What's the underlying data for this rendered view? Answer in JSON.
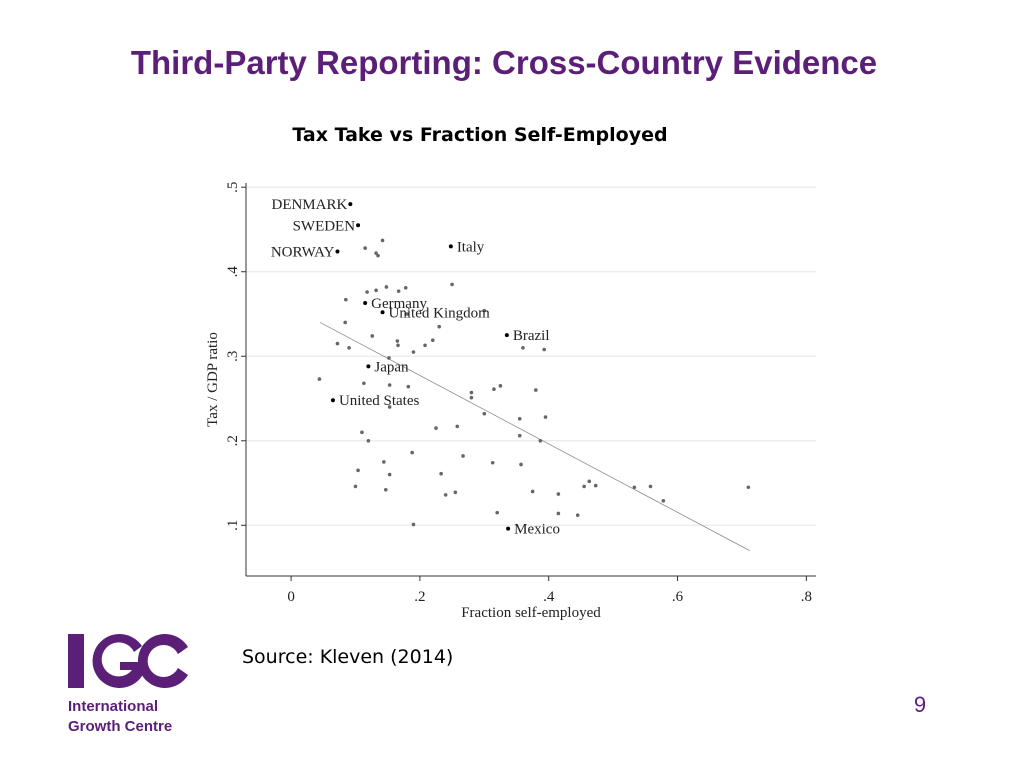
{
  "slide": {
    "title": "Third-Party Reporting: Cross-Country Evidence",
    "source": "Source: Kleven (2014)",
    "page_number": "9"
  },
  "logo": {
    "mark": "IGC",
    "line1": "International",
    "line2": "Growth Centre",
    "color": "#5b1f78"
  },
  "chart_data": {
    "type": "scatter",
    "title": "Tax Take vs Fraction Self-Employed",
    "xlabel": "Fraction self-employed",
    "ylabel": "Tax / GDP ratio",
    "xlim": [
      -0.07,
      0.815
    ],
    "ylim": [
      0.04,
      0.505
    ],
    "xticks": [
      {
        "v": 0,
        "label": "0"
      },
      {
        "v": 0.2,
        "label": ".2"
      },
      {
        "v": 0.4,
        "label": ".4"
      },
      {
        "v": 0.6,
        "label": ".6"
      },
      {
        "v": 0.8,
        "label": ".8"
      }
    ],
    "yticks": [
      {
        "v": 0.1,
        "label": ".1"
      },
      {
        "v": 0.2,
        "label": ".2"
      },
      {
        "v": 0.3,
        "label": ".3"
      },
      {
        "v": 0.4,
        "label": ".4"
      },
      {
        "v": 0.5,
        "label": ".5"
      }
    ],
    "grid": true,
    "fit_line": {
      "x": [
        0.045,
        0.712
      ],
      "y": [
        0.34,
        0.07
      ]
    },
    "labeled_points": [
      {
        "label": "DENMARK",
        "x": 0.092,
        "y": 0.48,
        "side": "left"
      },
      {
        "label": "SWEDEN",
        "x": 0.104,
        "y": 0.455,
        "side": "left"
      },
      {
        "label": "NORWAY",
        "x": 0.072,
        "y": 0.424,
        "side": "left"
      },
      {
        "label": "Italy",
        "x": 0.248,
        "y": 0.43,
        "side": "right"
      },
      {
        "label": "Germany",
        "x": 0.115,
        "y": 0.363,
        "side": "right"
      },
      {
        "label": "United Kingdom",
        "x": 0.142,
        "y": 0.352,
        "side": "right"
      },
      {
        "label": "Brazil",
        "x": 0.335,
        "y": 0.325,
        "side": "right"
      },
      {
        "label": "Japan",
        "x": 0.12,
        "y": 0.288,
        "side": "right"
      },
      {
        "label": "United States",
        "x": 0.065,
        "y": 0.248,
        "side": "right"
      },
      {
        "label": "Mexico",
        "x": 0.337,
        "y": 0.096,
        "side": "right"
      }
    ],
    "points": [
      {
        "x": 0.115,
        "y": 0.428
      },
      {
        "x": 0.142,
        "y": 0.437
      },
      {
        "x": 0.132,
        "y": 0.422
      },
      {
        "x": 0.135,
        "y": 0.419
      },
      {
        "x": 0.25,
        "y": 0.385
      },
      {
        "x": 0.085,
        "y": 0.367
      },
      {
        "x": 0.118,
        "y": 0.376
      },
      {
        "x": 0.132,
        "y": 0.378
      },
      {
        "x": 0.148,
        "y": 0.382
      },
      {
        "x": 0.167,
        "y": 0.377
      },
      {
        "x": 0.178,
        "y": 0.381
      },
      {
        "x": 0.084,
        "y": 0.34
      },
      {
        "x": 0.18,
        "y": 0.35
      },
      {
        "x": 0.3,
        "y": 0.354
      },
      {
        "x": 0.126,
        "y": 0.324
      },
      {
        "x": 0.072,
        "y": 0.315
      },
      {
        "x": 0.09,
        "y": 0.31
      },
      {
        "x": 0.165,
        "y": 0.318
      },
      {
        "x": 0.166,
        "y": 0.313
      },
      {
        "x": 0.208,
        "y": 0.313
      },
      {
        "x": 0.22,
        "y": 0.319
      },
      {
        "x": 0.23,
        "y": 0.335
      },
      {
        "x": 0.19,
        "y": 0.305
      },
      {
        "x": 0.36,
        "y": 0.31
      },
      {
        "x": 0.393,
        "y": 0.308
      },
      {
        "x": 0.152,
        "y": 0.298
      },
      {
        "x": 0.044,
        "y": 0.273
      },
      {
        "x": 0.113,
        "y": 0.268
      },
      {
        "x": 0.153,
        "y": 0.266
      },
      {
        "x": 0.182,
        "y": 0.264
      },
      {
        "x": 0.28,
        "y": 0.257
      },
      {
        "x": 0.28,
        "y": 0.251
      },
      {
        "x": 0.315,
        "y": 0.261
      },
      {
        "x": 0.325,
        "y": 0.265
      },
      {
        "x": 0.38,
        "y": 0.26
      },
      {
        "x": 0.153,
        "y": 0.24
      },
      {
        "x": 0.3,
        "y": 0.232
      },
      {
        "x": 0.355,
        "y": 0.226
      },
      {
        "x": 0.395,
        "y": 0.228
      },
      {
        "x": 0.225,
        "y": 0.215
      },
      {
        "x": 0.258,
        "y": 0.217
      },
      {
        "x": 0.11,
        "y": 0.21
      },
      {
        "x": 0.12,
        "y": 0.2
      },
      {
        "x": 0.355,
        "y": 0.206
      },
      {
        "x": 0.387,
        "y": 0.2
      },
      {
        "x": 0.188,
        "y": 0.186
      },
      {
        "x": 0.267,
        "y": 0.182
      },
      {
        "x": 0.144,
        "y": 0.175
      },
      {
        "x": 0.313,
        "y": 0.174
      },
      {
        "x": 0.357,
        "y": 0.172
      },
      {
        "x": 0.104,
        "y": 0.165
      },
      {
        "x": 0.153,
        "y": 0.16
      },
      {
        "x": 0.233,
        "y": 0.161
      },
      {
        "x": 0.1,
        "y": 0.146
      },
      {
        "x": 0.147,
        "y": 0.142
      },
      {
        "x": 0.24,
        "y": 0.136
      },
      {
        "x": 0.255,
        "y": 0.139
      },
      {
        "x": 0.375,
        "y": 0.14
      },
      {
        "x": 0.415,
        "y": 0.137
      },
      {
        "x": 0.455,
        "y": 0.146
      },
      {
        "x": 0.463,
        "y": 0.152
      },
      {
        "x": 0.473,
        "y": 0.147
      },
      {
        "x": 0.533,
        "y": 0.145
      },
      {
        "x": 0.558,
        "y": 0.146
      },
      {
        "x": 0.578,
        "y": 0.129
      },
      {
        "x": 0.71,
        "y": 0.145
      },
      {
        "x": 0.32,
        "y": 0.115
      },
      {
        "x": 0.415,
        "y": 0.114
      },
      {
        "x": 0.445,
        "y": 0.112
      },
      {
        "x": 0.19,
        "y": 0.101
      }
    ]
  }
}
